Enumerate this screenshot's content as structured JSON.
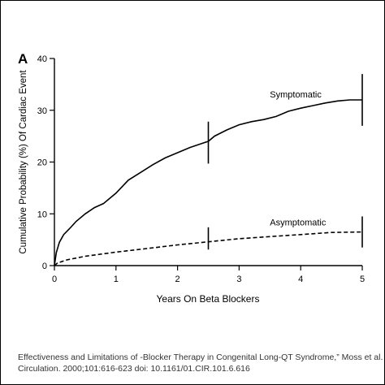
{
  "chart_data": {
    "type": "line",
    "panel_label": "A",
    "xlabel": "Years On Beta Blockers",
    "ylabel": "Cumulative Probability (%) Of Cardiac Event",
    "xlim": [
      0,
      5
    ],
    "ylim": [
      0,
      40
    ],
    "x_ticks": [
      0,
      1,
      2,
      3,
      4,
      5
    ],
    "y_ticks": [
      0,
      10,
      20,
      30,
      40
    ],
    "grid": false,
    "series": [
      {
        "name": "Symptomatic",
        "line_style": "solid",
        "x": [
          0,
          0.03,
          0.08,
          0.15,
          0.25,
          0.35,
          0.5,
          0.65,
          0.8,
          1.0,
          1.2,
          1.4,
          1.6,
          1.8,
          2.0,
          2.2,
          2.4,
          2.5,
          2.6,
          2.8,
          3.0,
          3.2,
          3.4,
          3.6,
          3.8,
          4.0,
          4.2,
          4.4,
          4.6,
          4.8,
          5.0
        ],
        "values": [
          0,
          2.5,
          4.5,
          6,
          7.2,
          8.5,
          10,
          11.2,
          12,
          14,
          16.5,
          18,
          19.5,
          20.8,
          21.8,
          22.8,
          23.6,
          24,
          25,
          26.2,
          27.2,
          27.8,
          28.2,
          28.8,
          29.8,
          30.4,
          30.9,
          31.4,
          31.8,
          32,
          32
        ]
      },
      {
        "name": "Asymptomatic",
        "line_style": "dashed",
        "x": [
          0,
          0.05,
          0.2,
          0.5,
          1.0,
          1.5,
          2.0,
          2.5,
          3.0,
          3.5,
          4.0,
          4.5,
          5.0
        ],
        "values": [
          0,
          0.5,
          1.1,
          1.8,
          2.6,
          3.3,
          4.0,
          4.6,
          5.2,
          5.6,
          6.0,
          6.4,
          6.5
        ]
      }
    ],
    "error_bars": [
      {
        "series": "Symptomatic",
        "x": 2.5,
        "low": 19.7,
        "high": 27.8
      },
      {
        "series": "Symptomatic",
        "x": 5.0,
        "low": 27.0,
        "high": 37.0
      },
      {
        "series": "Asymptomatic",
        "x": 2.5,
        "low": 3.1,
        "high": 7.4
      },
      {
        "series": "Asymptomatic",
        "x": 5.0,
        "low": 3.5,
        "high": 9.5
      }
    ],
    "annotations": [
      {
        "text": "Symptomatic",
        "x": 3.5,
        "y": 32.5
      },
      {
        "text": "Asymptomatic",
        "x": 3.5,
        "y": 7.8
      }
    ]
  },
  "caption": {
    "line1": "Effectiveness and Limitations of \u001a-Blocker Therapy in Congenital Long-QT Syndrome,” Moss et al.",
    "line2": "Circulation. 2000;101:616-623 doi: 10.1161/01.CIR.101.6.616"
  }
}
